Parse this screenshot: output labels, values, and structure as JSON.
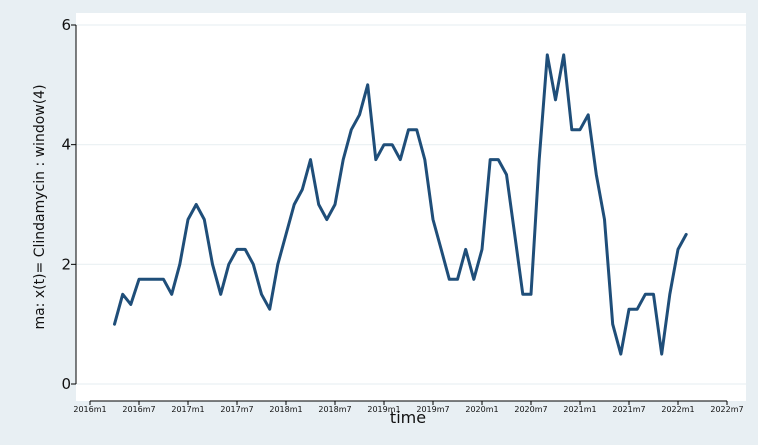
{
  "chart_data": {
    "type": "line",
    "title": "",
    "xlabel": "time",
    "ylabel": "ma: x(t)= Clindamycin : window(4)",
    "xlim": [
      "2016-01",
      "2022-07"
    ],
    "ylim": [
      0,
      6
    ],
    "y_ticks": [
      0,
      2,
      4,
      6
    ],
    "y_tick_labels": [
      "0",
      "2",
      "4",
      "6"
    ],
    "x_ticks": [
      "2016-01",
      "2016-07",
      "2017-01",
      "2017-07",
      "2018-01",
      "2018-07",
      "2019-01",
      "2019-07",
      "2020-01",
      "2020-07",
      "2021-01",
      "2021-07",
      "2022-01",
      "2022-07"
    ],
    "x_tick_labels": [
      "2016m1",
      "2016m7",
      "2017m1",
      "2017m7",
      "2018m1",
      "2018m7",
      "2019m1",
      "2019m7",
      "2020m1",
      "2020m7",
      "2021m1",
      "2021m7",
      "2022m1",
      "2022m7"
    ],
    "grid": "horizontal",
    "legend": "none",
    "colors": {
      "line": "#1f4e79",
      "plot_bg": "#ffffff",
      "outer_bg": "#e8eff3",
      "grid": "#eaf0f3"
    },
    "series": [
      {
        "x": [
          "2016-04",
          "2016-05",
          "2016-06",
          "2016-07",
          "2016-08",
          "2016-09",
          "2016-10",
          "2016-11",
          "2016-12",
          "2017-01",
          "2017-02",
          "2017-03",
          "2017-04",
          "2017-05",
          "2017-06",
          "2017-07",
          "2017-08",
          "2017-09",
          "2017-10",
          "2017-11",
          "2017-12",
          "2018-01",
          "2018-02",
          "2018-03",
          "2018-04",
          "2018-05",
          "2018-06",
          "2018-07",
          "2018-08",
          "2018-09",
          "2018-10",
          "2018-11",
          "2018-12",
          "2019-01",
          "2019-02",
          "2019-03",
          "2019-04",
          "2019-05",
          "2019-06",
          "2019-07",
          "2019-08",
          "2019-09",
          "2019-10",
          "2019-11",
          "2019-12",
          "2020-01",
          "2020-02",
          "2020-03",
          "2020-04",
          "2020-05",
          "2020-06",
          "2020-07",
          "2020-08",
          "2020-09",
          "2020-10",
          "2020-11",
          "2020-12",
          "2021-01",
          "2021-02",
          "2021-03",
          "2021-04",
          "2021-05",
          "2021-06",
          "2021-07",
          "2021-08",
          "2021-09",
          "2021-10",
          "2021-11",
          "2021-12",
          "2022-01",
          "2022-02"
        ],
        "values": [
          1,
          1.5,
          1.33,
          1.75,
          1.75,
          1.75,
          1.75,
          1.5,
          2,
          2.75,
          3,
          2.75,
          2,
          1.5,
          2,
          2.25,
          2.25,
          2,
          1.5,
          1.25,
          2,
          2.5,
          3,
          3.25,
          3.75,
          3,
          2.75,
          3,
          3.75,
          4.25,
          4.5,
          5,
          3.75,
          4,
          4,
          3.75,
          4.25,
          4.25,
          3.75,
          2.75,
          2.25,
          1.75,
          1.75,
          2.25,
          1.75,
          2.25,
          3.75,
          3.75,
          3.5,
          2.5,
          1.5,
          1.5,
          3.75,
          5.5,
          4.75,
          5.5,
          4.25,
          4.25,
          4.5,
          3.5,
          2.75,
          1,
          0.5,
          1.25,
          1.25,
          1.5,
          1.5,
          0.5,
          1.5,
          2.25,
          2.5
        ]
      }
    ]
  }
}
